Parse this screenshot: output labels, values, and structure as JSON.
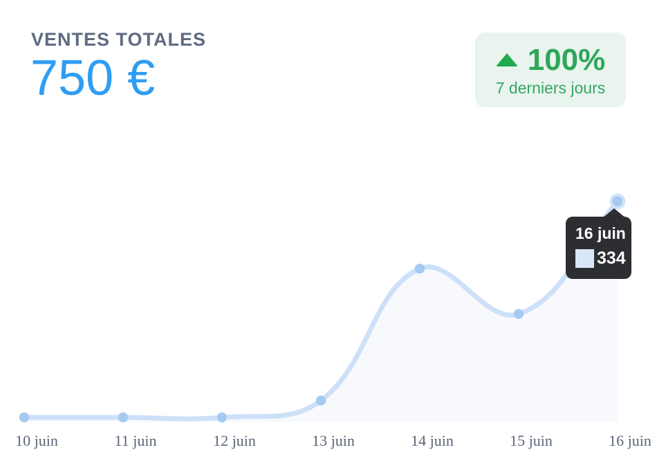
{
  "header": {
    "title": "VENTES TOTALES",
    "amount": "750 €"
  },
  "badge": {
    "direction": "up",
    "percent": "100%",
    "period": "7 derniers jours"
  },
  "tooltip": {
    "title": "16 juin",
    "value": "334"
  },
  "chart_data": {
    "type": "line",
    "title": "Ventes totales - 7 derniers jours",
    "categories": [
      "10 juin",
      "11 juin",
      "12 juin",
      "13 juin",
      "14 juin",
      "15 juin",
      "16 juin"
    ],
    "values": [
      0,
      0,
      0,
      26,
      230,
      160,
      334
    ],
    "series_name": "Ventes",
    "xlabel": "",
    "ylabel": "",
    "ylim": [
      0,
      334
    ],
    "grid": false,
    "legend": "none",
    "smooth": true,
    "area_fill": true,
    "highlighted_point": {
      "category": "16 juin",
      "value": 334
    }
  },
  "icons": {
    "trend_up": "triangle-up-icon"
  },
  "colors": {
    "title": "#5e6b80",
    "amount": "#2e9df3",
    "badge_bg": "#e9f4ee",
    "badge_icon": "#21a94d",
    "badge_percent": "#2ea75a",
    "badge_period": "#36a565",
    "axis_label": "#5a6578",
    "line": "#cde0f8",
    "dot": "#a5caf1",
    "dot_halo": "#cfe3f8",
    "area": "#f7f9fd",
    "tooltip_bg": "#2c2e32",
    "tooltip_text": "#ffffff",
    "swatch": "#d8e6f6"
  }
}
